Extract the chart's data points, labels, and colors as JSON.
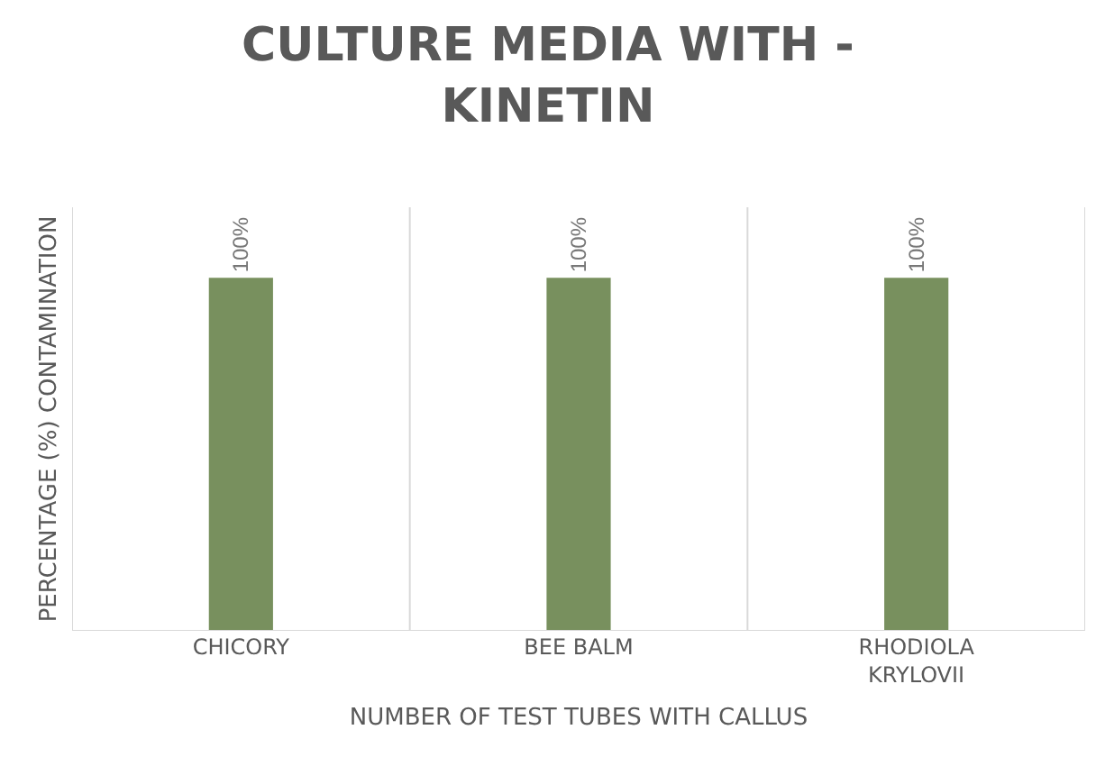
{
  "chart_data": {
    "type": "bar",
    "title": "CULTURE MEDIA WITH - KINETIN",
    "xlabel": "NUMBER OF TEST TUBES WITH CALLUS",
    "ylabel": "PERCENTAGE (%) CONTAMINATION",
    "categories": [
      "CHICORY",
      "BEE BALM",
      "RHODIOLA KRYLOVII"
    ],
    "values": [
      100,
      100,
      100
    ],
    "value_labels": [
      "100%",
      "100%",
      "100%"
    ],
    "color": "#78905e",
    "grid": "x"
  }
}
